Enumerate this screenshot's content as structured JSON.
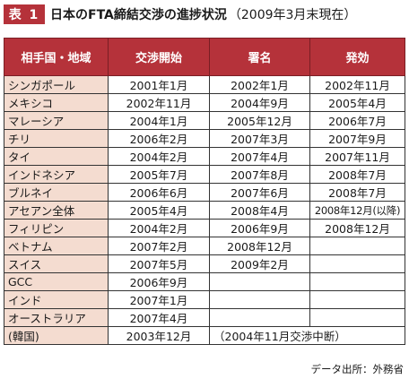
{
  "title": {
    "badge": "表 1",
    "main": "日本のFTA締結交渉の進捗状況",
    "sub": "（2009年3月末現在）"
  },
  "table": {
    "headers": [
      "相手国・地域",
      "交渉開始",
      "署名",
      "発効"
    ],
    "rows": [
      {
        "country": "シンガポール",
        "start": "2001年1月",
        "signed": "2002年1月",
        "effective": "2002年11月"
      },
      {
        "country": "メキシコ",
        "start": "2002年11月",
        "signed": "2004年9月",
        "effective": "2005年4月"
      },
      {
        "country": "マレーシア",
        "start": "2004年1月",
        "signed": "2005年12月",
        "effective": "2006年7月"
      },
      {
        "country": "チリ",
        "start": "2006年2月",
        "signed": "2007年3月",
        "effective": "2007年9月"
      },
      {
        "country": "タイ",
        "start": "2004年2月",
        "signed": "2007年4月",
        "effective": "2007年11月"
      },
      {
        "country": "インドネシア",
        "start": "2005年7月",
        "signed": "2007年8月",
        "effective": "2008年7月"
      },
      {
        "country": "ブルネイ",
        "start": "2006年6月",
        "signed": "2007年6月",
        "effective": "2008年7月"
      },
      {
        "country": "アセアン全体",
        "start": "2005年4月",
        "signed": "2008年4月",
        "effective": "2008年12月(以降)"
      },
      {
        "country": "フィリピン",
        "start": "2004年2月",
        "signed": "2006年9月",
        "effective": "2008年12月"
      },
      {
        "country": "ベトナム",
        "start": "2007年2月",
        "signed": "2008年12月",
        "effective": ""
      },
      {
        "country": "スイス",
        "start": "2007年5月",
        "signed": "2009年2月",
        "effective": ""
      },
      {
        "country": "GCC",
        "start": "2006年9月",
        "signed": "",
        "effective": ""
      },
      {
        "country": "インド",
        "start": "2007年1月",
        "signed": "",
        "effective": ""
      },
      {
        "country": "オーストラリア",
        "start": "2007年4月",
        "signed": "",
        "effective": ""
      }
    ],
    "korea": {
      "country": "(韓国)",
      "start": "2003年12月",
      "note": "（2004年11月交渉中断）"
    }
  },
  "source": "データ出所：外務省"
}
